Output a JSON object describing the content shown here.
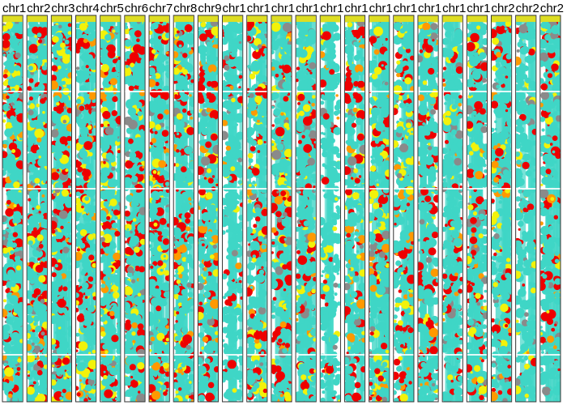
{
  "chart_data": {
    "type": "scatter",
    "panels": [
      {
        "label": "chr1",
        "fill": 0.72
      },
      {
        "label": "chr2",
        "fill": 0.7
      },
      {
        "label": "chr3",
        "fill": 0.7
      },
      {
        "label": "chr4",
        "fill": 0.7
      },
      {
        "label": "chr5",
        "fill": 0.7
      },
      {
        "label": "chr6",
        "fill": 0.7
      },
      {
        "label": "chr7",
        "fill": 0.68
      },
      {
        "label": "chr8",
        "fill": 0.66
      },
      {
        "label": "chr9",
        "fill": 0.64
      },
      {
        "label": "chr1",
        "fill": 0.3
      },
      {
        "label": "chr1",
        "fill": 0.62
      },
      {
        "label": "chr1",
        "fill": 0.64
      },
      {
        "label": "chr1",
        "fill": 0.62
      },
      {
        "label": "chr1",
        "fill": 0.22
      },
      {
        "label": "chr1",
        "fill": 0.55
      },
      {
        "label": "chr1",
        "fill": 0.6
      },
      {
        "label": "chr1",
        "fill": 0.62
      },
      {
        "label": "chr1",
        "fill": 0.58
      },
      {
        "label": "chr1",
        "fill": 0.45
      },
      {
        "label": "chr1",
        "fill": 0.6
      },
      {
        "label": "chr2",
        "fill": 0.55
      },
      {
        "label": "chr2",
        "fill": 0.35
      },
      {
        "label": "chr2",
        "fill": 0.5
      }
    ],
    "categories": [
      "cyan",
      "red",
      "yellow",
      "orange"
    ],
    "colors": {
      "cyan": "#3fd6c6",
      "red": "#ee0000",
      "yellow": "#f2f20a",
      "orange": "#ff9900",
      "grey": "#8a8a8a",
      "header": "#dddd22"
    },
    "grid": false,
    "legend": "none"
  }
}
